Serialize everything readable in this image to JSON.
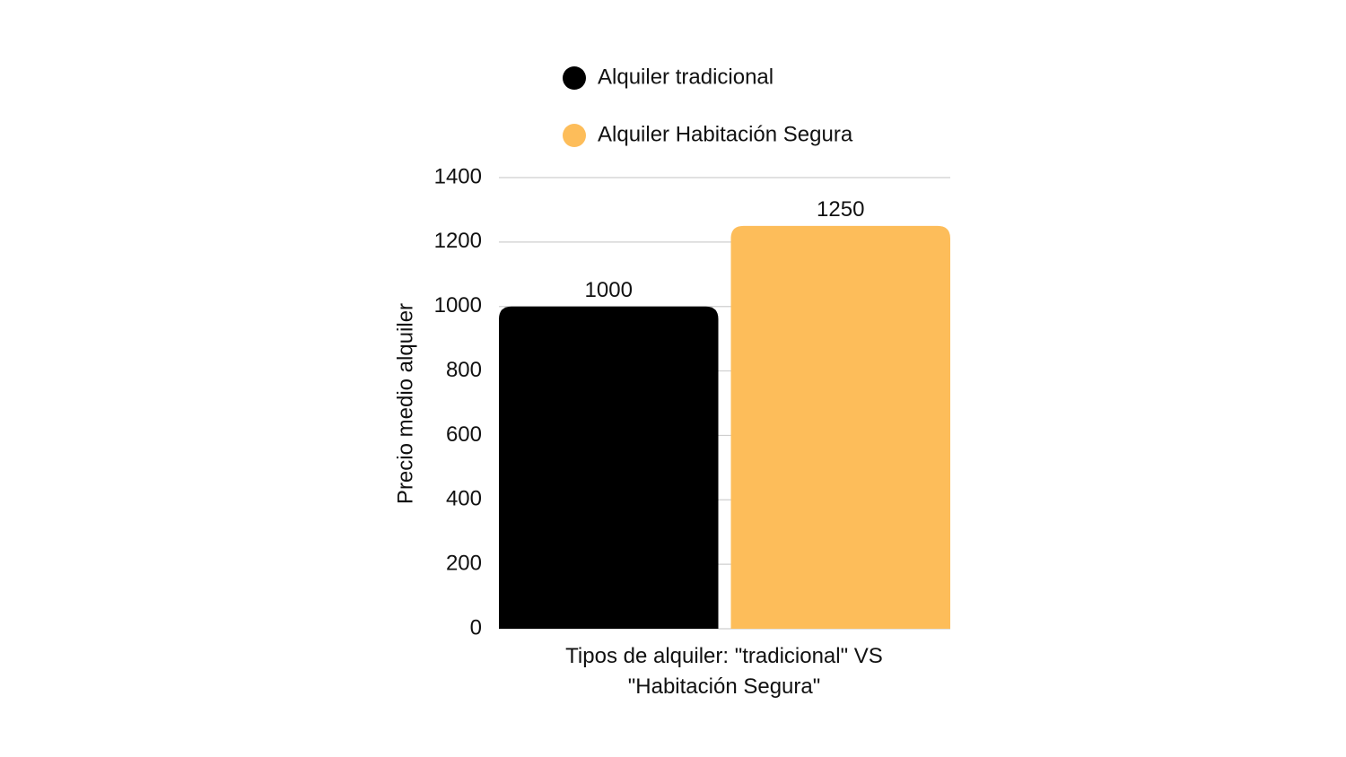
{
  "chart_data": {
    "type": "bar",
    "categories": [
      "Tipos de alquiler: \"tradicional\" VS \"Habitación Segura\""
    ],
    "ylabel": "Precio medio alquiler",
    "series": [
      {
        "name": "Alquiler tradicional",
        "color": "#000000",
        "values": [
          1000
        ]
      },
      {
        "name": "Alquiler Habitación Segura",
        "color": "#fdbd5a",
        "values": [
          1250
        ]
      }
    ],
    "ylim": [
      0,
      1400
    ],
    "yticks": [
      0,
      200,
      400,
      600,
      800,
      1000,
      1200,
      1400
    ],
    "grid": true,
    "legend": "top"
  }
}
